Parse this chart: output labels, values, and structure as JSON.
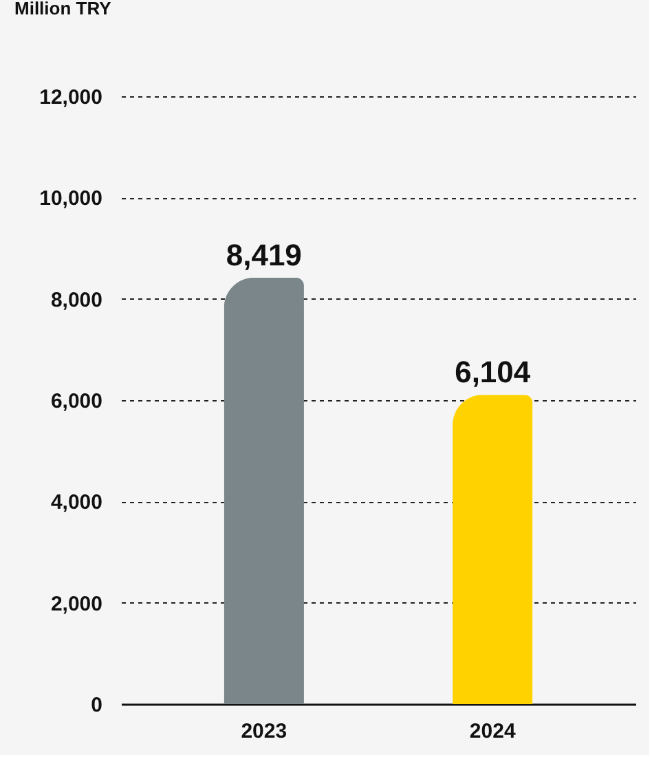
{
  "chart_data": {
    "type": "bar",
    "ylabel": "Million TRY",
    "categories": [
      "2023",
      "2024"
    ],
    "values": [
      8419,
      6104
    ],
    "colors": [
      "#7b868a",
      "#ffd200"
    ],
    "value_labels": [
      "8,419",
      "6,104"
    ],
    "ylim": [
      0,
      12000
    ],
    "yticks": [
      0,
      {
        "value": 2000,
        "label": "2,000"
      },
      {
        "value": 4000,
        "label": "4,000"
      },
      {
        "value": 6000,
        "label": "6,000"
      },
      {
        "value": 8000,
        "label": "8,000"
      },
      {
        "value": 10000,
        "label": "10,000"
      },
      {
        "value": 12000,
        "label": "12,000"
      }
    ],
    "grid": "y"
  }
}
